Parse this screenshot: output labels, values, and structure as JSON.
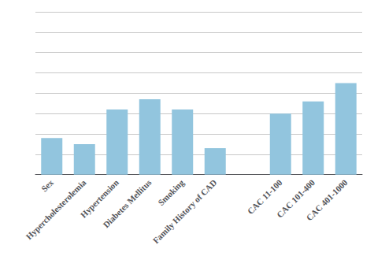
{
  "chart_data": {
    "type": "bar",
    "categories": [
      "Sex",
      "Hypercholesterolemia",
      "Hypertension",
      "Diabetes Mellitus",
      "Smoking",
      "Family History of CAD",
      null,
      "CAC 11-100",
      "CAC 101-400",
      "CAC 401-1000"
    ],
    "values": [
      1.8,
      1.5,
      3.2,
      3.7,
      3.2,
      1.3,
      null,
      3.0,
      3.6,
      4.5
    ],
    "color": "#92C5DE",
    "ylim": [
      0,
      8
    ],
    "yticks": [
      0,
      1,
      2,
      3,
      4,
      5,
      6,
      7,
      8
    ],
    "grid": true,
    "tick_labels": "x"
  }
}
